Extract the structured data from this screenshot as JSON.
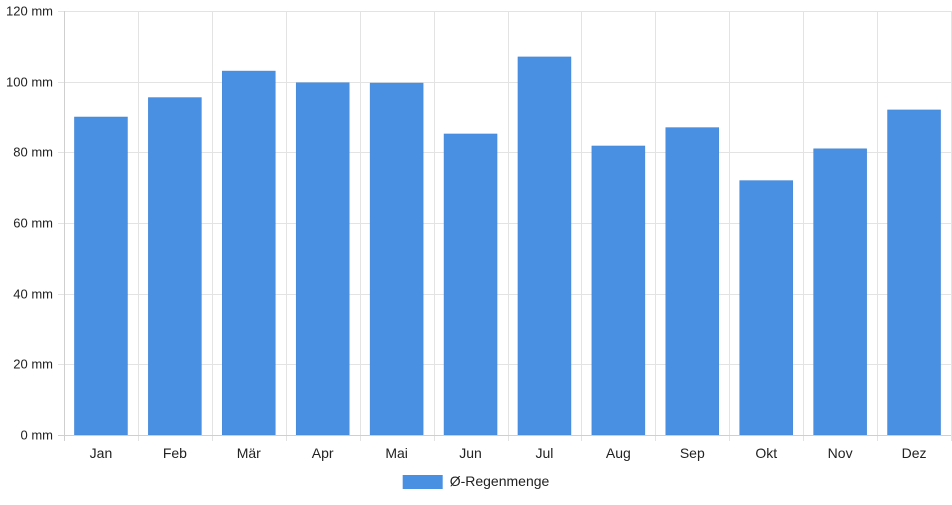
{
  "chart_data": {
    "type": "bar",
    "categories": [
      "Jan",
      "Feb",
      "Mär",
      "Apr",
      "Mai",
      "Jun",
      "Jul",
      "Aug",
      "Sep",
      "Okt",
      "Nov",
      "Dez"
    ],
    "series": [
      {
        "name": "Ø-Regenmenge",
        "values": [
          90,
          95.5,
          103,
          99.7,
          99.6,
          85.2,
          107,
          81.8,
          87,
          72,
          81,
          92
        ],
        "color": "#4a90e2"
      }
    ],
    "y_ticks": [
      0,
      20,
      40,
      60,
      80,
      100,
      120
    ],
    "y_tick_suffix": " mm",
    "ylim": [
      0,
      120
    ],
    "grid": true,
    "legend_position": "bottom-center"
  }
}
